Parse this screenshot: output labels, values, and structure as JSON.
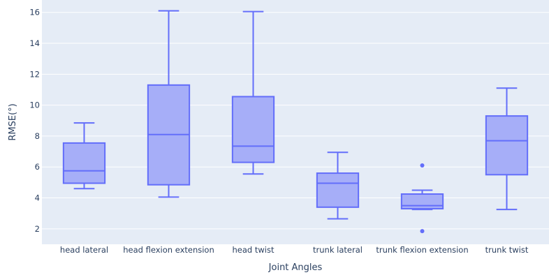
{
  "chart_data": {
    "type": "box",
    "xlabel": "Joint Angles",
    "ylabel": "RMSE(°)",
    "ylim": [
      1,
      16.8
    ],
    "yticks": [
      2,
      4,
      6,
      8,
      10,
      12,
      14,
      16
    ],
    "grid": true,
    "colors": {
      "plot_bg": "#e5ecf6",
      "grid": "#ffffff",
      "box_line": "#636efa",
      "box_fill": "#a6aef8",
      "text": "#2a3f5f"
    },
    "categories": [
      "head lateral",
      "head flexion extension",
      "head twist",
      "trunk lateral",
      "trunk flexion extension",
      "trunk twist"
    ],
    "boxes": [
      {
        "category": "head lateral",
        "lower_whisker": 4.6,
        "q1": 4.95,
        "median": 5.75,
        "q3": 7.55,
        "upper_whisker": 8.85,
        "outliers": []
      },
      {
        "category": "head flexion extension",
        "lower_whisker": 4.05,
        "q1": 4.85,
        "median": 8.1,
        "q3": 11.3,
        "upper_whisker": 16.1,
        "outliers": []
      },
      {
        "category": "head twist",
        "lower_whisker": 5.55,
        "q1": 6.3,
        "median": 7.35,
        "q3": 10.55,
        "upper_whisker": 16.05,
        "outliers": []
      },
      {
        "category": "trunk lateral",
        "lower_whisker": 2.65,
        "q1": 3.4,
        "median": 4.95,
        "q3": 5.6,
        "upper_whisker": 6.95,
        "outliers": []
      },
      {
        "category": "trunk flexion extension",
        "lower_whisker": 3.25,
        "q1": 3.3,
        "median": 3.5,
        "q3": 4.25,
        "upper_whisker": 4.5,
        "outliers": [
          6.1,
          1.85
        ]
      },
      {
        "category": "trunk twist",
        "lower_whisker": 3.25,
        "q1": 5.5,
        "median": 7.7,
        "q3": 9.3,
        "upper_whisker": 11.1,
        "outliers": []
      }
    ]
  }
}
